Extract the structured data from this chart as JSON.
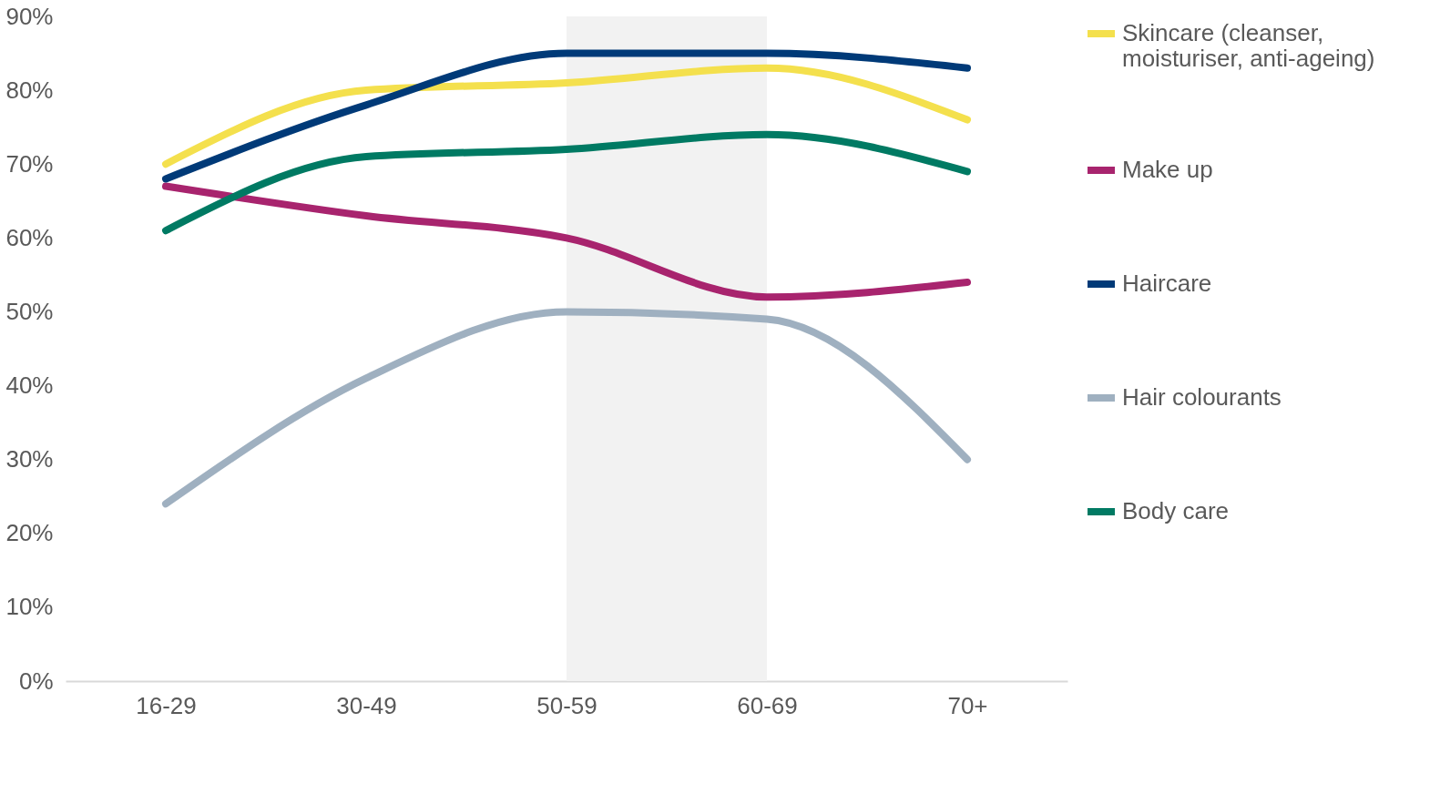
{
  "chart_data": {
    "type": "line",
    "categories": [
      "16-29",
      "30-49",
      "50-59",
      "60-69",
      "70+"
    ],
    "series": [
      {
        "name": "Skincare (cleanser, moisturiser, anti-ageing)",
        "color": "#f4e04d",
        "values": [
          70,
          80,
          81,
          83,
          76
        ]
      },
      {
        "name": "Make up",
        "color": "#a8246e",
        "values": [
          67,
          63,
          60,
          52,
          54
        ]
      },
      {
        "name": "Haircare",
        "color": "#003a78",
        "values": [
          68,
          78,
          85,
          85,
          83
        ]
      },
      {
        "name": "Hair colourants",
        "color": "#9fb0c0",
        "values": [
          24,
          41,
          50,
          49,
          30
        ]
      },
      {
        "name": "Body care",
        "color": "#007a63",
        "values": [
          61,
          71,
          72,
          74,
          69
        ]
      }
    ],
    "ylim": [
      0,
      90
    ],
    "yticks": [
      {
        "value": 0,
        "label": "0%"
      },
      {
        "value": 10,
        "label": "10%"
      },
      {
        "value": 20,
        "label": "20%"
      },
      {
        "value": 30,
        "label": "30%"
      },
      {
        "value": 40,
        "label": "40%"
      },
      {
        "value": 50,
        "label": "50%"
      },
      {
        "value": 60,
        "label": "60%"
      },
      {
        "value": 70,
        "label": "70%"
      },
      {
        "value": 80,
        "label": "80%"
      },
      {
        "value": 90,
        "label": "90%"
      }
    ],
    "bands": [
      {
        "axis": "x",
        "from": "50-59",
        "to": "60-69",
        "color": "#f2f2f2"
      }
    ],
    "grid": false,
    "legend": "right",
    "line_style": "solid"
  }
}
